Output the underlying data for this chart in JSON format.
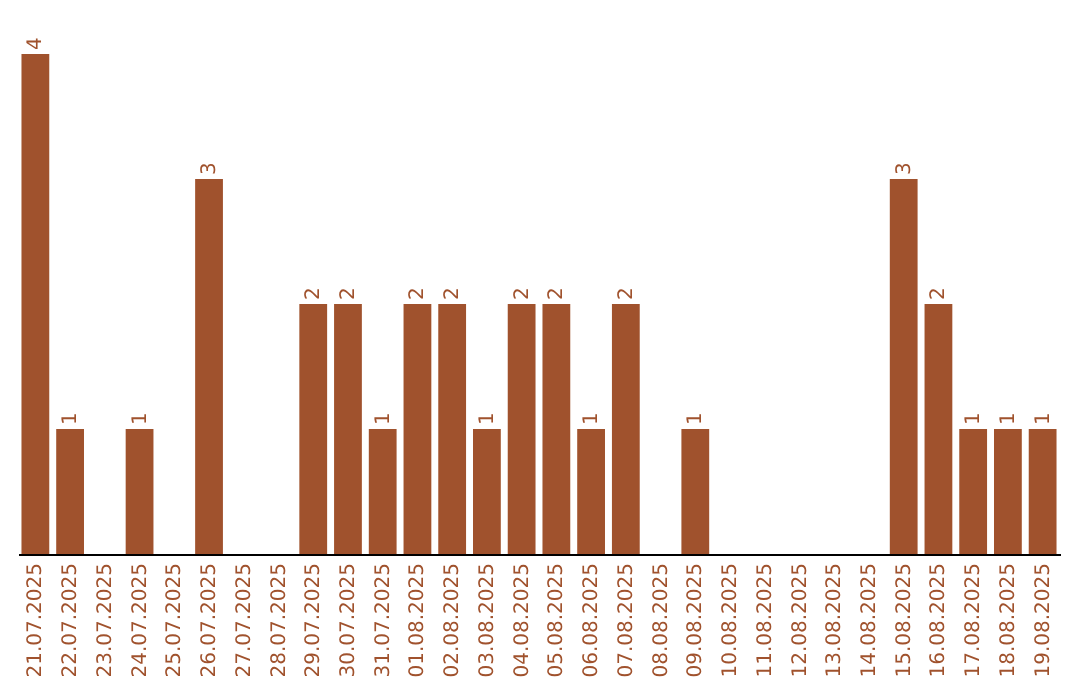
{
  "chart_data": {
    "type": "bar",
    "categories": [
      "21.07.2025",
      "22.07.2025",
      "23.07.2025",
      "24.07.2025",
      "25.07.2025",
      "26.07.2025",
      "27.07.2025",
      "28.07.2025",
      "29.07.2025",
      "30.07.2025",
      "31.07.2025",
      "01.08.2025",
      "02.08.2025",
      "03.08.2025",
      "04.08.2025",
      "05.08.2025",
      "06.08.2025",
      "07.08.2025",
      "08.08.2025",
      "09.08.2025",
      "10.08.2025",
      "11.08.2025",
      "12.08.2025",
      "13.08.2025",
      "14.08.2025",
      "15.08.2025",
      "16.08.2025",
      "17.08.2025",
      "18.08.2025",
      "19.08.2025"
    ],
    "values": [
      4,
      1,
      0,
      1,
      0,
      3,
      0,
      0,
      2,
      2,
      1,
      2,
      2,
      1,
      2,
      2,
      1,
      2,
      0,
      1,
      0,
      0,
      0,
      0,
      0,
      3,
      2,
      1,
      1,
      1
    ],
    "value_labels": [
      "4",
      "1",
      null,
      "1",
      null,
      "3",
      null,
      null,
      "2",
      "2",
      "1",
      "2",
      "2",
      "1",
      "2",
      "2",
      "1",
      "2",
      null,
      "1",
      null,
      null,
      null,
      null,
      null,
      "3",
      "2",
      "1",
      "1",
      "1"
    ],
    "color": "#a0522d",
    "grid": false
  }
}
